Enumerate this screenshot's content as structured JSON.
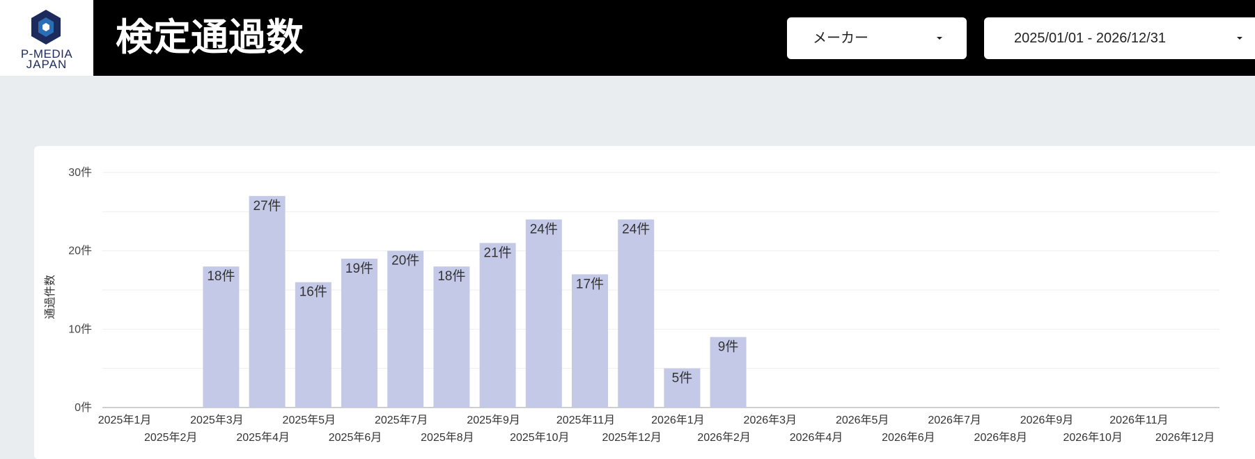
{
  "header": {
    "logo": {
      "line1": "P-MEDIA",
      "line2": "JAPAN",
      "brand_color": "#1c2a5c",
      "accent_color": "#2a6fb5"
    },
    "title": "検定通過数",
    "filters": {
      "maker": {
        "label": "メーカー",
        "icon": "caret-down-icon"
      },
      "date_range": {
        "label": "2025/01/01 - 2026/12/31",
        "icon": "caret-down-icon"
      }
    }
  },
  "colors": {
    "topbar": "#000000",
    "page_background": "#e9edf0",
    "card": "#ffffff",
    "bar": "#c5c9e8",
    "gridline": "#eeeeee"
  },
  "chart_data": {
    "type": "bar",
    "ylabel": "通過件数",
    "xlabel": "",
    "ylim": [
      0,
      30
    ],
    "yticks": [
      0,
      10,
      20,
      30
    ],
    "ytick_labels": [
      "0件",
      "10件",
      "20件",
      "30件"
    ],
    "grid": true,
    "categories": [
      "2025年1月",
      "2025年2月",
      "2025年3月",
      "2025年4月",
      "2025年5月",
      "2025年6月",
      "2025年7月",
      "2025年8月",
      "2025年9月",
      "2025年10月",
      "2025年11月",
      "2025年12月",
      "2026年1月",
      "2026年2月",
      "2026年3月",
      "2026年4月",
      "2026年5月",
      "2026年6月",
      "2026年7月",
      "2026年8月",
      "2026年9月",
      "2026年10月",
      "2026年11月",
      "2026年12月"
    ],
    "values": [
      null,
      null,
      18,
      27,
      16,
      19,
      20,
      18,
      21,
      24,
      17,
      24,
      5,
      9,
      null,
      null,
      null,
      null,
      null,
      null,
      null,
      null,
      null,
      null
    ],
    "data_labels": [
      null,
      null,
      "18件",
      "27件",
      "16件",
      "19件",
      "20件",
      "18件",
      "21件",
      "24件",
      "17件",
      "24件",
      "5件",
      "9件",
      null,
      null,
      null,
      null,
      null,
      null,
      null,
      null,
      null,
      null
    ]
  }
}
